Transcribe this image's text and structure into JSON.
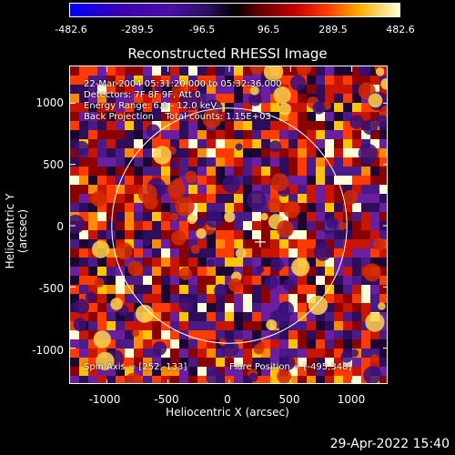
{
  "colorbar": {
    "ticks": [
      "-482.6",
      "-289.5",
      "-96.5",
      "96.5",
      "289.5",
      "482.6"
    ],
    "colors": [
      "#0000ff",
      "#3a00b0",
      "#000000",
      "#c10000",
      "#ffae00",
      "#ffffd8"
    ]
  },
  "title": "Reconstructed RHESSI Image",
  "annotations": {
    "line1": "22-Mar-2004 05:31:20.000 to 05:32:36.000",
    "line2": "Detectors: 7F 8F 9F, Att 0",
    "line3": "Energy Range: 6.0 - 12.0 keV",
    "line4": "Back Projection    Total counts: 1.15E+03",
    "spin_axis": "Spin Axis = [252,-133]",
    "flare_position": "Flare Position = [-495,348]"
  },
  "footer_date": "29-Apr-2022 15:40",
  "chart_data": {
    "type": "heatmap",
    "title": "Reconstructed RHESSI Image",
    "xlabel": "Heliocentric X (arcsec)",
    "ylabel": "Heliocentric Y (arcsec)",
    "xlim": [
      -1300,
      1300
    ],
    "ylim": [
      -1300,
      1300
    ],
    "x_ticks": [
      "-1000",
      "-500",
      "0",
      "500",
      "1000"
    ],
    "y_ticks": [
      "1000",
      "500",
      "0",
      "-500",
      "-1000"
    ],
    "colorbar_range": [
      -482.6,
      482.6
    ],
    "solar_limb_radius_arcsec": 960,
    "crosshair_arcsec": [
      252,
      -133
    ]
  }
}
